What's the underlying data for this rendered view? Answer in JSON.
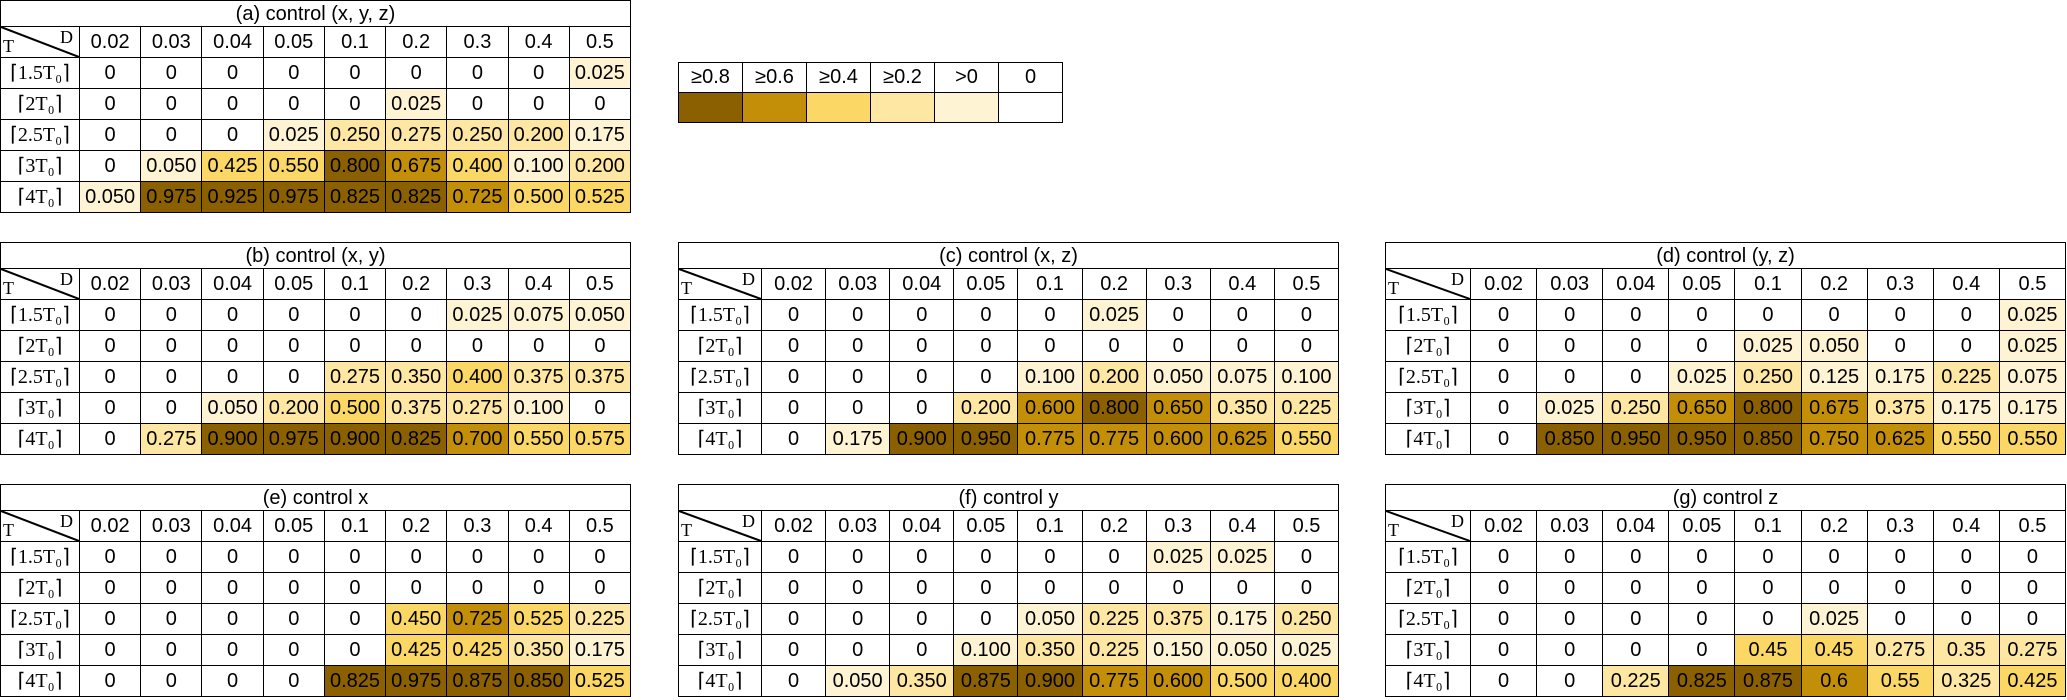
{
  "colors": {
    "ge08": "#8a6000",
    "ge06": "#c48f08",
    "ge04": "#fbd766",
    "ge02": "#fde7a3",
    "gt0": "#fef3d2",
    "zero": "#ffffff"
  },
  "legend": {
    "labels": [
      "≥0.8",
      "≥0.6",
      "≥0.4",
      "≥0.2",
      ">0",
      "0"
    ],
    "levels": [
      "ge08",
      "ge06",
      "ge04",
      "ge02",
      "gt0",
      "zero"
    ]
  },
  "chart_data": [
    {
      "type": "heatmap",
      "title": "(a) control (x, y, z)",
      "corner": {
        "t": "T",
        "d": "D"
      },
      "columns": [
        "0.02",
        "0.03",
        "0.04",
        "0.05",
        "0.1",
        "0.2",
        "0.3",
        "0.4",
        "0.5"
      ],
      "rows": [
        "⌈1.5T₀⌉",
        "⌈2T₀⌉",
        "⌈2.5T₀⌉",
        "⌈3T₀⌉",
        "⌈4T₀⌉"
      ],
      "values": [
        [
          "0",
          "0",
          "0",
          "0",
          "0",
          "0",
          "0",
          "0",
          "0.025"
        ],
        [
          "0",
          "0",
          "0",
          "0",
          "0",
          "0.025",
          "0",
          "0",
          "0"
        ],
        [
          "0",
          "0",
          "0",
          "0.025",
          "0.250",
          "0.275",
          "0.250",
          "0.200",
          "0.175"
        ],
        [
          "0",
          "0.050",
          "0.425",
          "0.550",
          "0.800",
          "0.675",
          "0.400",
          "0.100",
          "0.200"
        ],
        [
          "0.050",
          "0.975",
          "0.925",
          "0.975",
          "0.825",
          "0.825",
          "0.725",
          "0.500",
          "0.525"
        ]
      ]
    },
    {
      "type": "heatmap",
      "title": "(b) control (x, y)",
      "corner": {
        "t": "T",
        "d": "D"
      },
      "columns": [
        "0.02",
        "0.03",
        "0.04",
        "0.05",
        "0.1",
        "0.2",
        "0.3",
        "0.4",
        "0.5"
      ],
      "rows": [
        "⌈1.5T₀⌉",
        "⌈2T₀⌉",
        "⌈2.5T₀⌉",
        "⌈3T₀⌉",
        "⌈4T₀⌉"
      ],
      "values": [
        [
          "0",
          "0",
          "0",
          "0",
          "0",
          "0",
          "0.025",
          "0.075",
          "0.050"
        ],
        [
          "0",
          "0",
          "0",
          "0",
          "0",
          "0",
          "0",
          "0",
          "0"
        ],
        [
          "0",
          "0",
          "0",
          "0",
          "0.275",
          "0.350",
          "0.400",
          "0.375",
          "0.375"
        ],
        [
          "0",
          "0",
          "0.050",
          "0.200",
          "0.500",
          "0.375",
          "0.275",
          "0.100",
          "0"
        ],
        [
          "0",
          "0.275",
          "0.900",
          "0.975",
          "0.900",
          "0.825",
          "0.700",
          "0.550",
          "0.575"
        ]
      ]
    },
    {
      "type": "heatmap",
      "title": "(c) control (x, z)",
      "corner": {
        "t": "T",
        "d": "D"
      },
      "columns": [
        "0.02",
        "0.03",
        "0.04",
        "0.05",
        "0.1",
        "0.2",
        "0.3",
        "0.4",
        "0.5"
      ],
      "rows": [
        "⌈1.5T₀⌉",
        "⌈2T₀⌉",
        "⌈2.5T₀⌉",
        "⌈3T₀⌉",
        "⌈4T₀⌉"
      ],
      "values": [
        [
          "0",
          "0",
          "0",
          "0",
          "0",
          "0.025",
          "0",
          "0",
          "0"
        ],
        [
          "0",
          "0",
          "0",
          "0",
          "0",
          "0",
          "0",
          "0",
          "0"
        ],
        [
          "0",
          "0",
          "0",
          "0",
          "0.100",
          "0.200",
          "0.050",
          "0.075",
          "0.100"
        ],
        [
          "0",
          "0",
          "0",
          "0.200",
          "0.600",
          "0.800",
          "0.650",
          "0.350",
          "0.225"
        ],
        [
          "0",
          "0.175",
          "0.900",
          "0.950",
          "0.775",
          "0.775",
          "0.600",
          "0.625",
          "0.550"
        ]
      ]
    },
    {
      "type": "heatmap",
      "title": "(d) control (y, z)",
      "corner": {
        "t": "T",
        "d": "D"
      },
      "columns": [
        "0.02",
        "0.03",
        "0.04",
        "0.05",
        "0.1",
        "0.2",
        "0.3",
        "0.4",
        "0.5"
      ],
      "rows": [
        "⌈1.5T₀⌉",
        "⌈2T₀⌉",
        "⌈2.5T₀⌉",
        "⌈3T₀⌉",
        "⌈4T₀⌉"
      ],
      "values": [
        [
          "0",
          "0",
          "0",
          "0",
          "0",
          "0",
          "0",
          "0",
          "0.025"
        ],
        [
          "0",
          "0",
          "0",
          "0",
          "0.025",
          "0.050",
          "0",
          "0",
          "0.025"
        ],
        [
          "0",
          "0",
          "0",
          "0.025",
          "0.250",
          "0.125",
          "0.175",
          "0.225",
          "0.075"
        ],
        [
          "0",
          "0.025",
          "0.250",
          "0.650",
          "0.800",
          "0.675",
          "0.375",
          "0.175",
          "0.175"
        ],
        [
          "0",
          "0.850",
          "0.950",
          "0.950",
          "0.850",
          "0.750",
          "0.625",
          "0.550",
          "0.550"
        ]
      ]
    },
    {
      "type": "heatmap",
      "title": "(e) control x",
      "corner": {
        "t": "T",
        "d": "D"
      },
      "columns": [
        "0.02",
        "0.03",
        "0.04",
        "0.05",
        "0.1",
        "0.2",
        "0.3",
        "0.4",
        "0.5"
      ],
      "rows": [
        "⌈1.5T₀⌉",
        "⌈2T₀⌉",
        "⌈2.5T₀⌉",
        "⌈3T₀⌉",
        "⌈4T₀⌉"
      ],
      "values": [
        [
          "0",
          "0",
          "0",
          "0",
          "0",
          "0",
          "0",
          "0",
          "0"
        ],
        [
          "0",
          "0",
          "0",
          "0",
          "0",
          "0",
          "0",
          "0",
          "0"
        ],
        [
          "0",
          "0",
          "0",
          "0",
          "0",
          "0.450",
          "0.725",
          "0.525",
          "0.225"
        ],
        [
          "0",
          "0",
          "0",
          "0",
          "0",
          "0.425",
          "0.425",
          "0.350",
          "0.175"
        ],
        [
          "0",
          "0",
          "0",
          "0",
          "0.825",
          "0.975",
          "0.875",
          "0.850",
          "0.525"
        ]
      ]
    },
    {
      "type": "heatmap",
      "title": "(f) control y",
      "corner": {
        "t": "T",
        "d": "D"
      },
      "columns": [
        "0.02",
        "0.03",
        "0.04",
        "0.05",
        "0.1",
        "0.2",
        "0.3",
        "0.4",
        "0.5"
      ],
      "rows": [
        "⌈1.5T₀⌉",
        "⌈2T₀⌉",
        "⌈2.5T₀⌉",
        "⌈3T₀⌉",
        "⌈4T₀⌉"
      ],
      "values": [
        [
          "0",
          "0",
          "0",
          "0",
          "0",
          "0",
          "0.025",
          "0.025",
          "0"
        ],
        [
          "0",
          "0",
          "0",
          "0",
          "0",
          "0",
          "0",
          "0",
          "0"
        ],
        [
          "0",
          "0",
          "0",
          "0",
          "0.050",
          "0.225",
          "0.375",
          "0.175",
          "0.250"
        ],
        [
          "0",
          "0",
          "0",
          "0.100",
          "0.350",
          "0.225",
          "0.150",
          "0.050",
          "0.025"
        ],
        [
          "0",
          "0.050",
          "0.350",
          "0.875",
          "0.900",
          "0.775",
          "0.600",
          "0.500",
          "0.400"
        ]
      ]
    },
    {
      "type": "heatmap",
      "title": "(g) control z",
      "corner": {
        "t": "T",
        "d": "D"
      },
      "columns": [
        "0.02",
        "0.03",
        "0.04",
        "0.05",
        "0.1",
        "0.2",
        "0.3",
        "0.4",
        "0.5"
      ],
      "rows": [
        "⌈1.5T₀⌉",
        "⌈2T₀⌉",
        "⌈2.5T₀⌉",
        "⌈3T₀⌉",
        "⌈4T₀⌉"
      ],
      "values": [
        [
          "0",
          "0",
          "0",
          "0",
          "0",
          "0",
          "0",
          "0",
          "0"
        ],
        [
          "0",
          "0",
          "0",
          "0",
          "0",
          "0",
          "0",
          "0",
          "0"
        ],
        [
          "0",
          "0",
          "0",
          "0",
          "0",
          "0.025",
          "0",
          "0",
          "0"
        ],
        [
          "0",
          "0",
          "0",
          "0",
          "0.45",
          "0.45",
          "0.275",
          "0.35",
          "0.275"
        ],
        [
          "0",
          "0",
          "0.225",
          "0.825",
          "0.875",
          "0.6",
          "0.55",
          "0.325",
          "0.425"
        ]
      ]
    }
  ]
}
